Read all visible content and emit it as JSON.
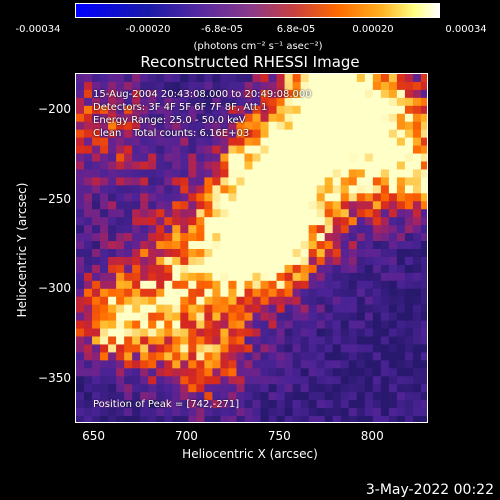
{
  "chart_data": {
    "type": "heatmap",
    "title": "Reconstructed RHESSI Image",
    "xlabel": "Heliocentric X (arcsec)",
    "ylabel": "Heliocentric Y (arcsec)",
    "xlim": [
      640,
      830
    ],
    "ylim": [
      -375,
      -180
    ],
    "x_ticks": [
      "650",
      "700",
      "750",
      "800"
    ],
    "y_ticks": [
      "-200",
      "-250",
      "-300",
      "-350"
    ],
    "x_tick_values": [
      650,
      700,
      750,
      800
    ],
    "y_tick_values": [
      -200,
      -250,
      -300,
      -350
    ],
    "colorbar": {
      "tick_labels": [
        "-0.00034",
        "-0.00020",
        "-6.8e-05",
        "6.8e-05",
        "0.00020",
        "0.00034"
      ],
      "tick_values": [
        -0.00034,
        -0.0002,
        -6.8e-05,
        6.8e-05,
        0.0002,
        0.00034
      ],
      "units": "(photons cm⁻² s⁻¹ asec⁻²)",
      "range": [
        -0.00034,
        0.00034
      ]
    },
    "annotations": {
      "time_range": "15-Aug-2004 20:43:08.000 to 20:49:08.000",
      "detectors": "Detectors: 3F 4F 5F 6F 7F 8F, Att 1",
      "energy_range": "Energy Range: 25.0 - 50.0 keV",
      "method": "Clean",
      "total_counts": "Total counts: 6.16E+03",
      "peak_position": "Position of Peak = [742,-271]"
    },
    "peak": {
      "x": 742,
      "y": -271
    }
  },
  "footer": {
    "date": "3-May-2022 00:22"
  }
}
